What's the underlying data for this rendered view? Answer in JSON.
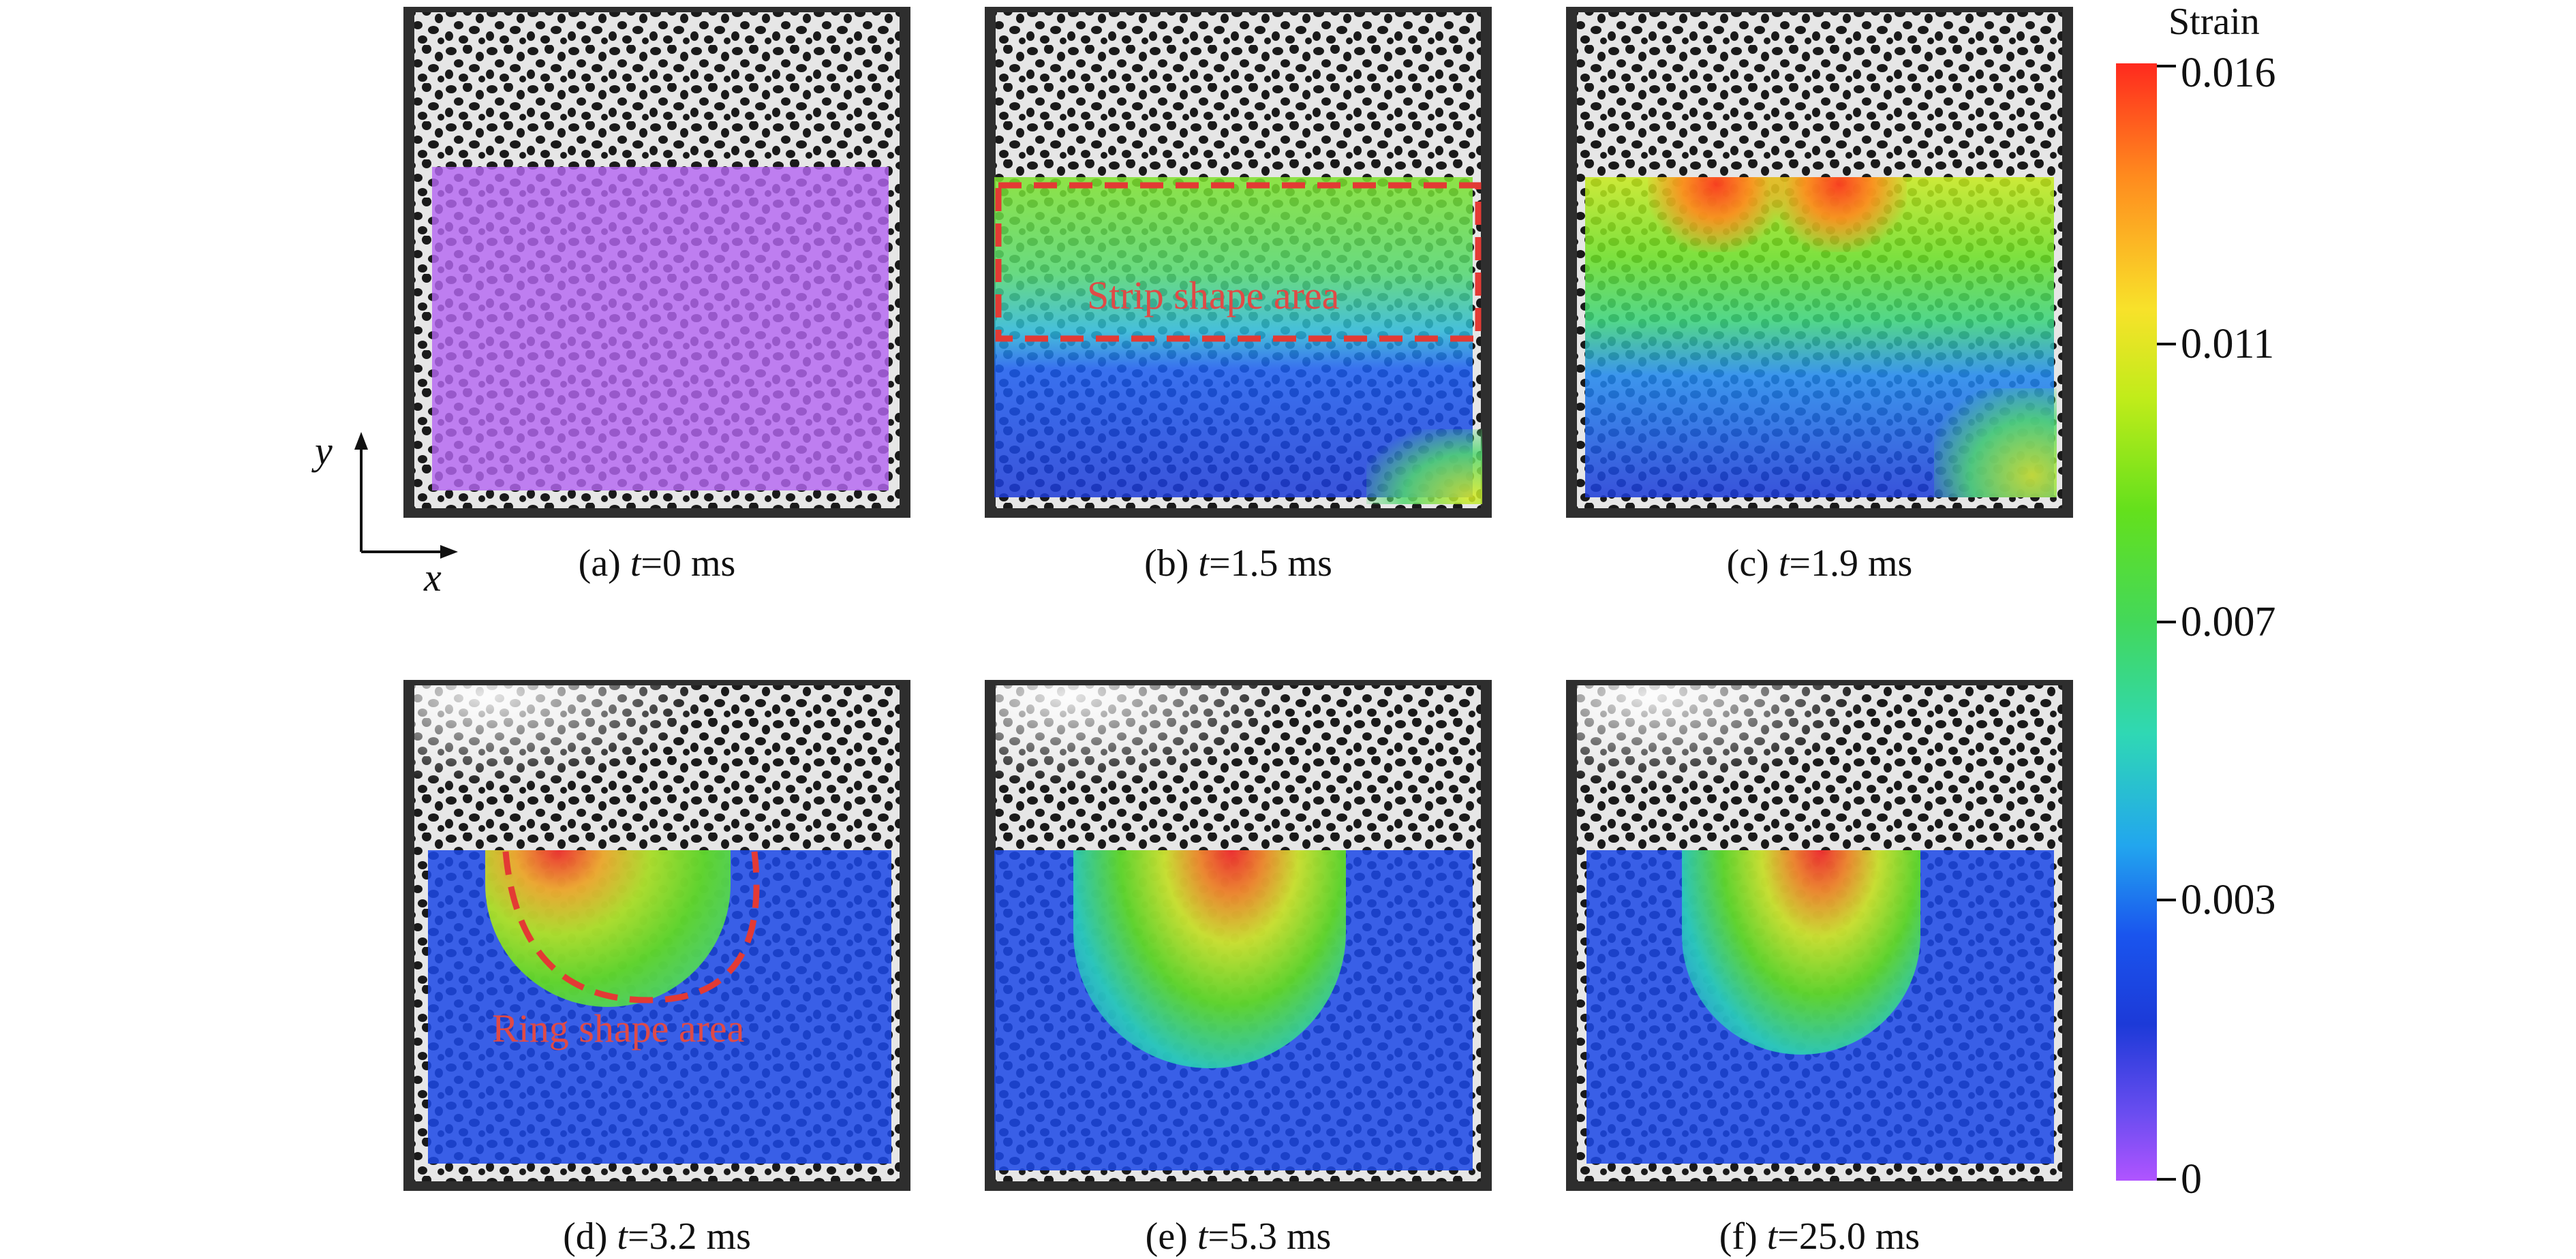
{
  "panels": [
    {
      "caption_prefix": "(a) ",
      "t_symbol": "t",
      "caption_suffix": "=0 ms"
    },
    {
      "caption_prefix": "(b) ",
      "t_symbol": "t",
      "caption_suffix": "=1.5 ms"
    },
    {
      "caption_prefix": "(c) ",
      "t_symbol": "t",
      "caption_suffix": "=1.9 ms"
    },
    {
      "caption_prefix": "(d) ",
      "t_symbol": "t",
      "caption_suffix": "=3.2 ms"
    },
    {
      "caption_prefix": "(e) ",
      "t_symbol": "t",
      "caption_suffix": "=5.3 ms"
    },
    {
      "caption_prefix": "(f) ",
      "t_symbol": "t",
      "caption_suffix": "=25.0 ms"
    }
  ],
  "annotations": {
    "strip": "Strip shape area",
    "ring": "Ring shape area"
  },
  "axes": {
    "x": "x",
    "y": "y"
  },
  "colorbar": {
    "title": "Strain",
    "ticks": [
      "0.016",
      "0.011",
      "0.007",
      "0.003",
      "0"
    ],
    "colors": {
      "max": "#ff2a1e",
      "mid": "#64e01c",
      "low": "#1a55ee",
      "min": "#b054ff"
    }
  },
  "accent_color": "#e04a46"
}
